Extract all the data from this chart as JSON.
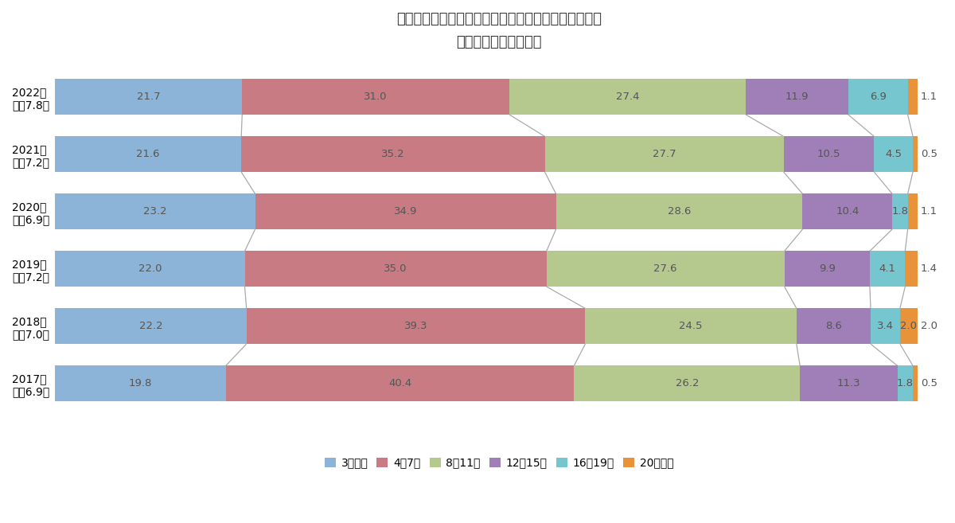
{
  "title_line1": "首都圏　新築マンションの徒歩時間別供給シェア推移",
  "title_line2": "（徒歩物件のみ集計）",
  "years": [
    "2022年\n平均7.8分",
    "2021年\n平均7.2分",
    "2020年\n平均6.9分",
    "2019年\n平均7.2分",
    "2018年\n平均7.0分",
    "2017年\n平均6.9分"
  ],
  "categories": [
    "3分以内",
    "4〜7分",
    "8〜11分",
    "12〜15分",
    "16〜19分",
    "20分以上"
  ],
  "colors": [
    "#8BB4D8",
    "#C97B84",
    "#B5C98E",
    "#A07EB8",
    "#76C6D0",
    "#E8923A"
  ],
  "data": [
    [
      21.7,
      31.0,
      27.4,
      11.9,
      6.9,
      1.1
    ],
    [
      21.6,
      35.2,
      27.7,
      10.5,
      4.5,
      0.5
    ],
    [
      23.2,
      34.9,
      28.6,
      10.4,
      1.8,
      1.1
    ],
    [
      22.0,
      35.0,
      27.6,
      9.9,
      4.1,
      1.4
    ],
    [
      22.2,
      39.3,
      24.5,
      8.6,
      3.4,
      2.0
    ],
    [
      19.8,
      40.4,
      26.2,
      11.3,
      1.8,
      0.5
    ]
  ],
  "background_color": "#FFFFFF",
  "bar_height": 0.62,
  "figsize": [
    12.0,
    6.57
  ],
  "dpi": 100,
  "title_fontsize": 13,
  "label_fontsize": 9.5,
  "tick_fontsize": 10,
  "legend_fontsize": 10
}
